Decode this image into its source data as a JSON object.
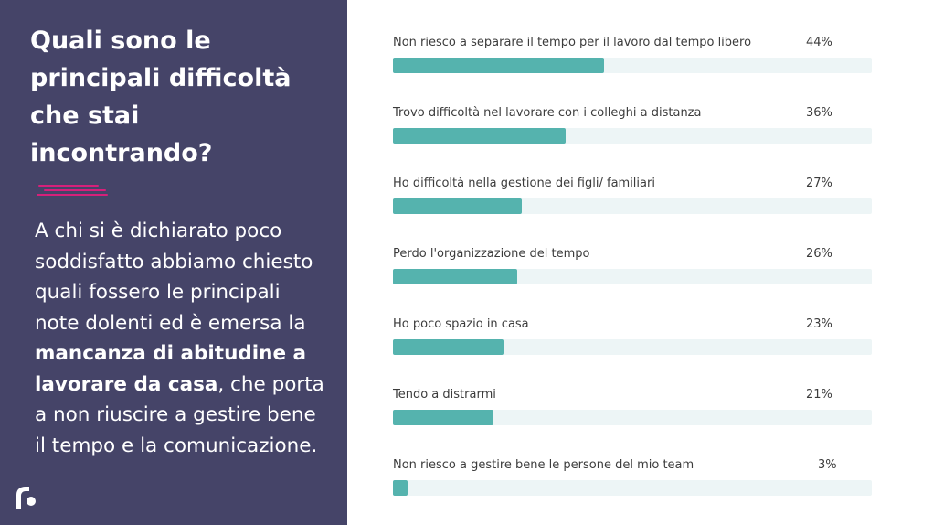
{
  "left_panel": {
    "title": "Quali sono le principali difficoltà che stai incontrando?",
    "description_parts": [
      {
        "text": "A chi si è dichiarato poco soddisfatto abbiamo chiesto quali fossero le principali note dolenti ed è emersa la ",
        "bold": false
      },
      {
        "text": "mancanza di abitudine a lavorare da casa",
        "bold": true
      },
      {
        "text": ", che porta a non riuscire a gestire bene il tempo e la comunicazione.",
        "bold": false
      }
    ],
    "accent_color": "#d6207a",
    "background_color": "#454468",
    "logo_icon": "brand-logo-icon"
  },
  "chart_data": {
    "type": "bar",
    "orientation": "horizontal",
    "categories": [
      "Non riesco a separare il tempo per il lavoro dal tempo libero",
      "Trovo difficoltà nel lavorare con i colleghi a distanza",
      "Ho difficoltà nella gestione dei figli/ familiari",
      "Perdo l'organizzazione del tempo",
      "Ho poco spazio in casa",
      "Tendo a distrarmi",
      "Non riesco a gestire bene le persone del mio team"
    ],
    "values": [
      44,
      36,
      27,
      26,
      23,
      21,
      3
    ],
    "value_labels": [
      "44%",
      "36%",
      "27%",
      "26%",
      "23%",
      "21%",
      "3%"
    ],
    "xlim": [
      0,
      100
    ],
    "bar_color": "#55b3ae",
    "track_color": "#edf5f6",
    "grid": false
  }
}
